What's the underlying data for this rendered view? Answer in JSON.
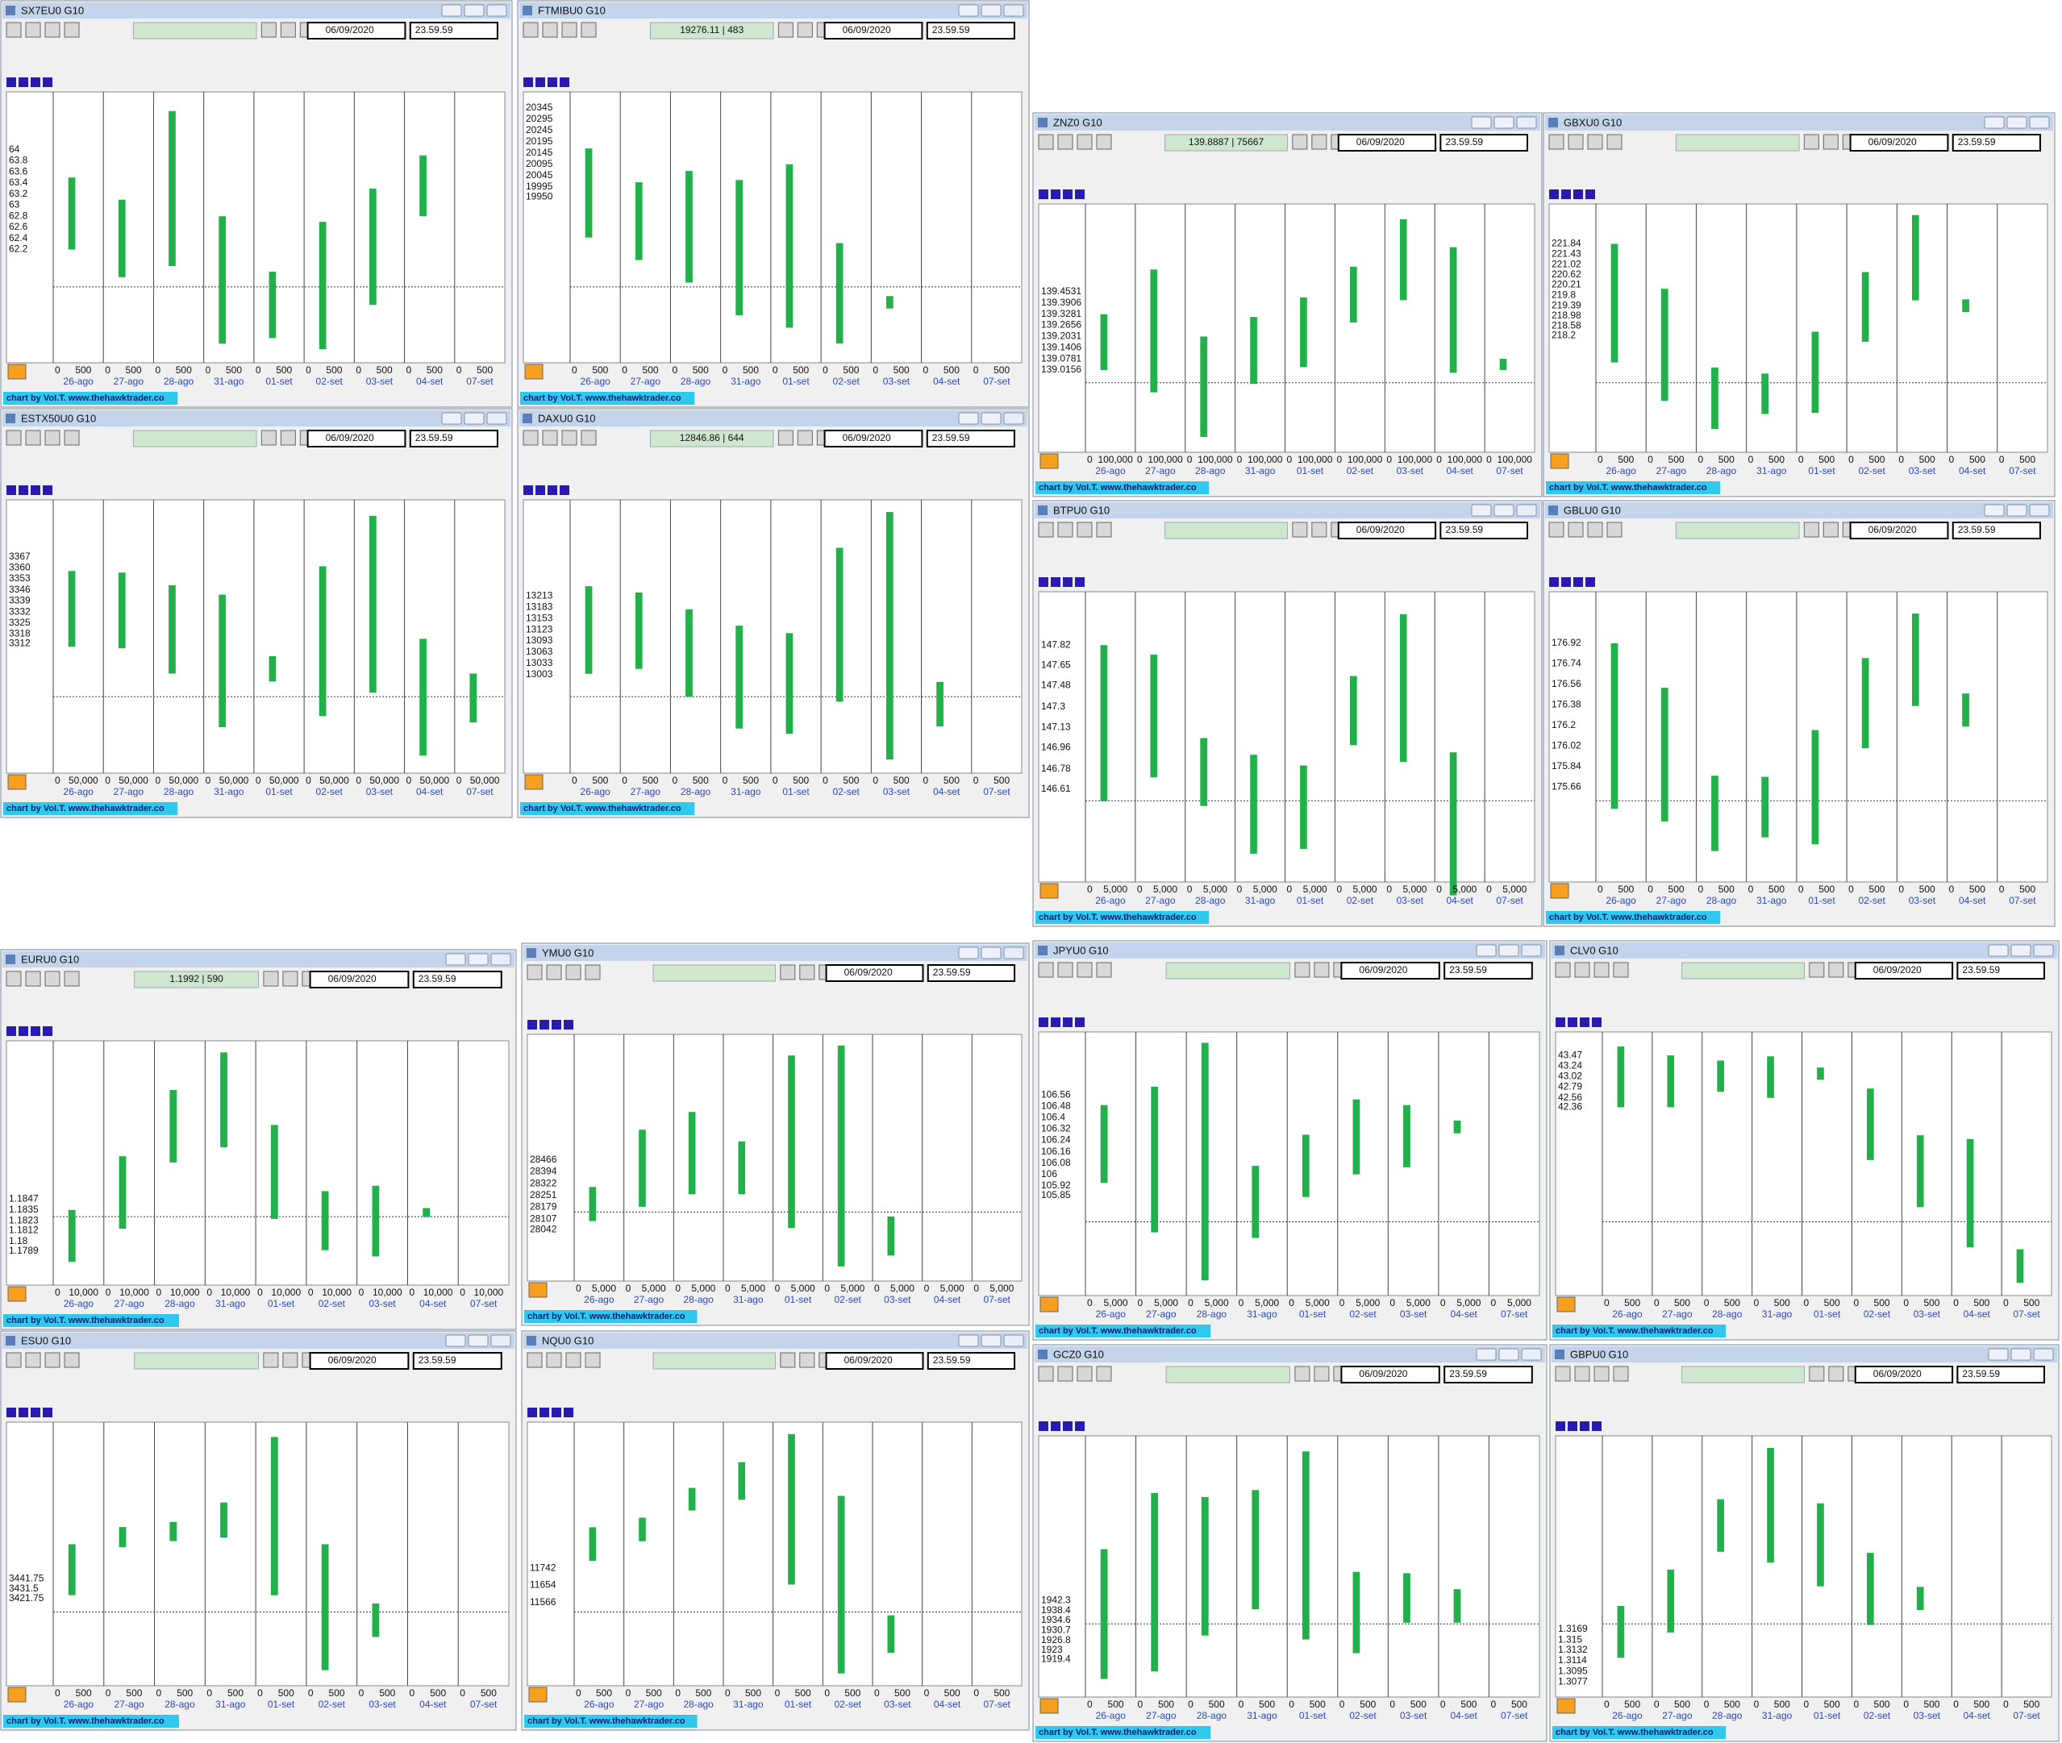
{
  "footer": "chart by VoI.T. www.thehawktrader.co",
  "date": "06/09/2020",
  "time": "23.59.59",
  "dates": [
    "26-ago",
    "27-ago",
    "28-ago",
    "31-ago",
    "01-set",
    "02-set",
    "03-set",
    "04-set",
    "07-set"
  ],
  "windows": [
    {
      "title": "SX7EU0 G10",
      "ylim": [
        60.3,
        64.9
      ],
      "axis": [
        64,
        63.8,
        63.6,
        63.4,
        63.2,
        63,
        62.8,
        62.6,
        62.4,
        62.2
      ],
      "vol_tick": 500,
      "ranges": [
        [
          62.2,
          63.5
        ],
        [
          61.7,
          63.1
        ],
        [
          61.9,
          64.7
        ],
        [
          60.5,
          62.8
        ],
        [
          60.6,
          61.8
        ],
        [
          60.4,
          62.7
        ],
        [
          61.2,
          63.3
        ],
        [
          62.8,
          63.9
        ],
        null
      ]
    },
    {
      "title": "FTMIBU0 G10",
      "price": "19276.11 | 483",
      "ylim": [
        19250,
        20380
      ],
      "axis": [
        20345,
        20295,
        20245,
        20195,
        20145,
        20095,
        20045,
        19995,
        19950
      ],
      "vol_tick": 500,
      "ranges": [
        [
          19770,
          20165
        ],
        [
          19670,
          20015
        ],
        [
          19570,
          20065
        ],
        [
          19425,
          20025
        ],
        [
          19370,
          20095
        ],
        [
          19300,
          19745
        ],
        [
          19455,
          19510
        ],
        null,
        null
      ]
    },
    {
      "title": "ESTX50U0 G10",
      "ylim": [
        3235,
        3398
      ],
      "axis": [
        3367,
        3360,
        3353,
        3346,
        3339,
        3332,
        3325,
        3318,
        3312
      ],
      "vol_tick": {
        "value": 50000,
        "label": "50,000"
      },
      "ranges": [
        [
          3310,
          3358
        ],
        [
          3309,
          3357
        ],
        [
          3293,
          3349
        ],
        [
          3259,
          3343
        ],
        [
          3288,
          3304
        ],
        [
          3266,
          3361
        ],
        [
          3281,
          3393
        ],
        [
          3241,
          3315
        ],
        [
          3262,
          3293
        ]
      ]
    },
    {
      "title": "DAXU0 G10",
      "price": "12846.86 | 644",
      "ylim": [
        12760,
        13450
      ],
      "axis": [
        13213,
        13183,
        13153,
        13123,
        13093,
        13063,
        13033,
        13003
      ],
      "vol_tick": 500,
      "ranges": [
        [
          13005,
          13240
        ],
        [
          13018,
          13223
        ],
        [
          12943,
          13178
        ],
        [
          12858,
          13134
        ],
        [
          12844,
          13114
        ],
        [
          12930,
          13343
        ],
        [
          12775,
          13439
        ],
        [
          12864,
          12983
        ],
        null
      ]
    },
    {
      "title": "ZNZ0 G10",
      "price": "139.8887 | 75667",
      "ylim": [
        138.6,
        139.9
      ],
      "axis": [
        139.4531,
        139.3906,
        139.3281,
        139.2656,
        139.2031,
        139.1406,
        139.0781,
        139.0156
      ],
      "vol_tick": {
        "value": 100000,
        "label": "100,000"
      },
      "ranges": [
        [
          139.0156,
          139.3281
        ],
        [
          138.8906,
          139.5781
        ],
        [
          138.6406,
          139.2031
        ],
        [
          138.9375,
          139.3125
        ],
        [
          139.0313,
          139.4219
        ],
        [
          139.2813,
          139.5938
        ],
        [
          139.4063,
          139.8594
        ],
        [
          139,
          139.7031
        ],
        [
          139.0156,
          139.0781
        ]
      ]
    },
    {
      "title": "GBXU0 G10",
      "ylim": [
        213.9,
        223.1
      ],
      "axis": [
        221.84,
        221.43,
        221.02,
        220.62,
        220.21,
        219.8,
        219.39,
        218.98,
        218.58,
        218.2
      ],
      "vol_tick": 500,
      "ranges": [
        [
          217.14,
          221.84
        ],
        [
          215.62,
          220.06
        ],
        [
          214.5,
          216.94
        ],
        [
          215.1,
          216.7
        ],
        [
          215.14,
          218.36
        ],
        [
          217.96,
          220.72
        ],
        [
          219.6,
          222.98
        ],
        [
          219.14,
          219.64
        ],
        null
      ]
    },
    {
      "title": "BTPU0 G10",
      "ylim": [
        145.9,
        148.2
      ],
      "axis": [
        147.82,
        147.65,
        147.48,
        147.3,
        147.13,
        146.96,
        146.78,
        146.61
      ],
      "vol_tick": {
        "value": 5000,
        "label": "5,000"
      },
      "ranges": [
        [
          146.51,
          147.82
        ],
        [
          146.71,
          147.74
        ],
        [
          146.47,
          147.04
        ],
        [
          146.07,
          146.9
        ],
        [
          146.11,
          146.81
        ],
        [
          146.98,
          147.56
        ],
        [
          146.84,
          148.08
        ],
        [
          145.72,
          146.92
        ],
        null
      ]
    },
    {
      "title": "GBLU0 G10",
      "ylim": [
        174.9,
        177.3
      ],
      "axis": [
        176.92,
        176.74,
        176.56,
        176.38,
        176.2,
        176.02,
        175.84,
        175.66
      ],
      "vol_tick": 500,
      "ranges": [
        [
          175.47,
          176.92
        ],
        [
          175.36,
          176.53
        ],
        [
          175.1,
          175.76
        ],
        [
          175.22,
          175.75
        ],
        [
          175.16,
          176.16
        ],
        [
          176,
          176.79
        ],
        [
          176.37,
          177.18
        ],
        [
          176.19,
          176.48
        ],
        null
      ]
    },
    {
      "title": "EURU0 G10",
      "price": "1.1992 | 590",
      "ylim": [
        1.176,
        1.2015
      ],
      "axis": [
        1.1847,
        1.1835,
        1.1823,
        1.1812,
        1.18,
        1.1789
      ],
      "vol_tick": {
        "value": 10000,
        "label": "10,000"
      },
      "ranges": [
        [
          1.1777,
          1.1835
        ],
        [
          1.1814,
          1.1895
        ],
        [
          1.1888,
          1.1969
        ],
        [
          1.1905,
          1.2011
        ],
        [
          1.1825,
          1.193
        ],
        [
          1.179,
          1.1856
        ],
        [
          1.1783,
          1.1862
        ],
        [
          1.1827,
          1.1837
        ],
        null
      ]
    },
    {
      "title": "YMU0 G10",
      "ylim": [
        27780,
        29180
      ],
      "axis": [
        28466,
        28394,
        28322,
        28251,
        28179,
        28107,
        28042
      ],
      "vol_tick": {
        "value": 5000,
        "label": "5,000"
      },
      "ranges": [
        [
          28095,
          28302
        ],
        [
          28182,
          28650
        ],
        [
          28258,
          28758
        ],
        [
          28258,
          28579
        ],
        [
          28053,
          29101
        ],
        [
          27820,
          29161
        ],
        [
          27886,
          28123
        ],
        null,
        null
      ]
    },
    {
      "title": "JPYU0 G10",
      "ylim": [
        105.2,
        106.95
      ],
      "axis": [
        106.56,
        106.48,
        106.4,
        106.32,
        106.24,
        106.16,
        106.08,
        106,
        105.92,
        105.85
      ],
      "vol_tick": {
        "value": 5000,
        "label": "5,000"
      },
      "ranges": [
        [
          105.94,
          106.49
        ],
        [
          105.59,
          106.62
        ],
        [
          105.25,
          106.93
        ],
        [
          105.55,
          106.06
        ],
        [
          105.84,
          106.28
        ],
        [
          106,
          106.53
        ],
        [
          106.05,
          106.49
        ],
        [
          106.29,
          106.38
        ],
        null
      ]
    },
    {
      "title": "CLV0 G10",
      "ylim": [
        38.5,
        43.8
      ],
      "axis": [
        43.47,
        43.24,
        43.02,
        42.79,
        42.56,
        42.36
      ],
      "vol_tick": 500,
      "ranges": [
        [
          42.36,
          43.66
        ],
        [
          42.36,
          43.47
        ],
        [
          42.69,
          43.36
        ],
        [
          42.56,
          43.45
        ],
        [
          42.95,
          43.21
        ],
        [
          41.23,
          42.76
        ],
        [
          40.22,
          41.76
        ],
        [
          39.36,
          41.68
        ],
        [
          38.6,
          39.32
        ]
      ]
    },
    {
      "title": "ESU0 G10",
      "ylim": [
        3340,
        3595
      ],
      "axis": [
        3441.75,
        3431.5,
        3421.75
      ],
      "vol_tick": 500,
      "ranges": [
        [
          3425,
          3477.5
        ],
        [
          3474.5,
          3495.25
        ],
        [
          3480.75,
          3500.5
        ],
        [
          3484.25,
          3520.5
        ],
        [
          3425,
          3588
        ],
        [
          3347.75,
          3477.5
        ],
        [
          3382,
          3416.5
        ],
        null,
        null
      ]
    },
    {
      "title": "NQU0 G10",
      "ylim": [
        11180,
        12450
      ],
      "axis": [
        11742,
        11654,
        11566
      ],
      "vol_tick": 500,
      "ranges": [
        [
          11779,
          11952
        ],
        [
          11880,
          12001
        ],
        [
          12038,
          12154
        ],
        [
          12093,
          12286
        ],
        [
          11658,
          12430
        ],
        [
          11202,
          12113
        ],
        [
          11307,
          11500
        ],
        null,
        null
      ]
    },
    {
      "title": "GCZ0 G10",
      "ylim": [
        1908,
        2003
      ],
      "axis": [
        1942.3,
        1938.4,
        1934.6,
        1930.7,
        1926.8,
        1923,
        1919.4
      ],
      "vol_tick": 500,
      "ranges": [
        [
          1911.9,
          1962.2
        ],
        [
          1914.8,
          1984
        ],
        [
          1928.7,
          1982.4
        ],
        [
          1938.9,
          1985.1
        ],
        [
          1927.2,
          2000.1
        ],
        [
          1921.9,
          1953.4
        ],
        [
          1933.7,
          1952.9
        ],
        [
          1933.7,
          1946.7
        ],
        null
      ]
    },
    {
      "title": "GBPU0 G10",
      "ylim": [
        1.3065,
        1.349
      ],
      "axis": [
        1.3169,
        1.315,
        1.3132,
        1.3114,
        1.3095,
        1.3077
      ],
      "vol_tick": 500,
      "ranges": [
        [
          1.3119,
          1.3209
        ],
        [
          1.3163,
          1.3272
        ],
        [
          1.3303,
          1.3394
        ],
        [
          1.3284,
          1.3483
        ],
        [
          1.3243,
          1.3387
        ],
        [
          1.3176,
          1.3301
        ],
        [
          1.3202,
          1.3242
        ],
        null,
        null
      ]
    }
  ]
}
